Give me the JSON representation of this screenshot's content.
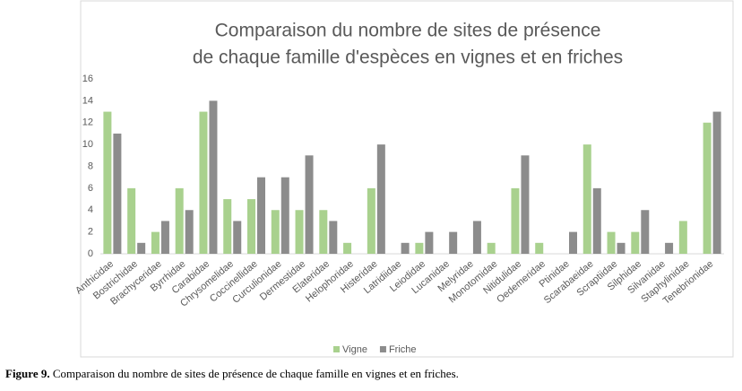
{
  "chart_data": {
    "type": "bar",
    "title": [
      "Comparaison du nombre de sites de présence",
      "de chaque famille d'espèces en vignes et en friches"
    ],
    "categories": [
      "Anthicidae",
      "Bostrichidae",
      "Brachyceridae",
      "Byrrhidae",
      "Carabidae",
      "Chrysomelidae",
      "Coccinellidae",
      "Curculionidae",
      "Dermestidae",
      "Elateridae",
      "Helophoridae",
      "Histeridae",
      "Latridiidae",
      "Leiodidae",
      "Lucanidae",
      "Melyridae",
      "Monotomidae",
      "Nitidulidae",
      "Oedemeridae",
      "Ptinidae",
      "Scarabaeidae",
      "Scraptiidae",
      "Silphidae",
      "Silvanidae",
      "Staphylinidae",
      "Tenebrionidae"
    ],
    "series": [
      {
        "name": "Vigne",
        "color": "#a9d18e",
        "values": [
          13,
          6,
          2,
          6,
          13,
          5,
          5,
          4,
          4,
          4,
          1,
          6,
          0,
          1,
          0,
          0,
          1,
          6,
          1,
          0,
          10,
          2,
          2,
          0,
          3,
          12
        ]
      },
      {
        "name": "Friche",
        "color": "#8c8c8c",
        "values": [
          11,
          1,
          3,
          4,
          14,
          3,
          7,
          7,
          9,
          3,
          0,
          10,
          1,
          2,
          2,
          3,
          0,
          9,
          0,
          2,
          6,
          1,
          4,
          1,
          0,
          13
        ]
      }
    ],
    "ylim": [
      0,
      16
    ],
    "yticks": [
      0,
      2,
      4,
      6,
      8,
      10,
      12,
      14,
      16
    ],
    "grid": false,
    "legend": "bottom"
  },
  "caption": {
    "label": "Figure 9.",
    "text": "Comparaison du nombre de sites de présence de chaque famille en vignes et en friches."
  }
}
